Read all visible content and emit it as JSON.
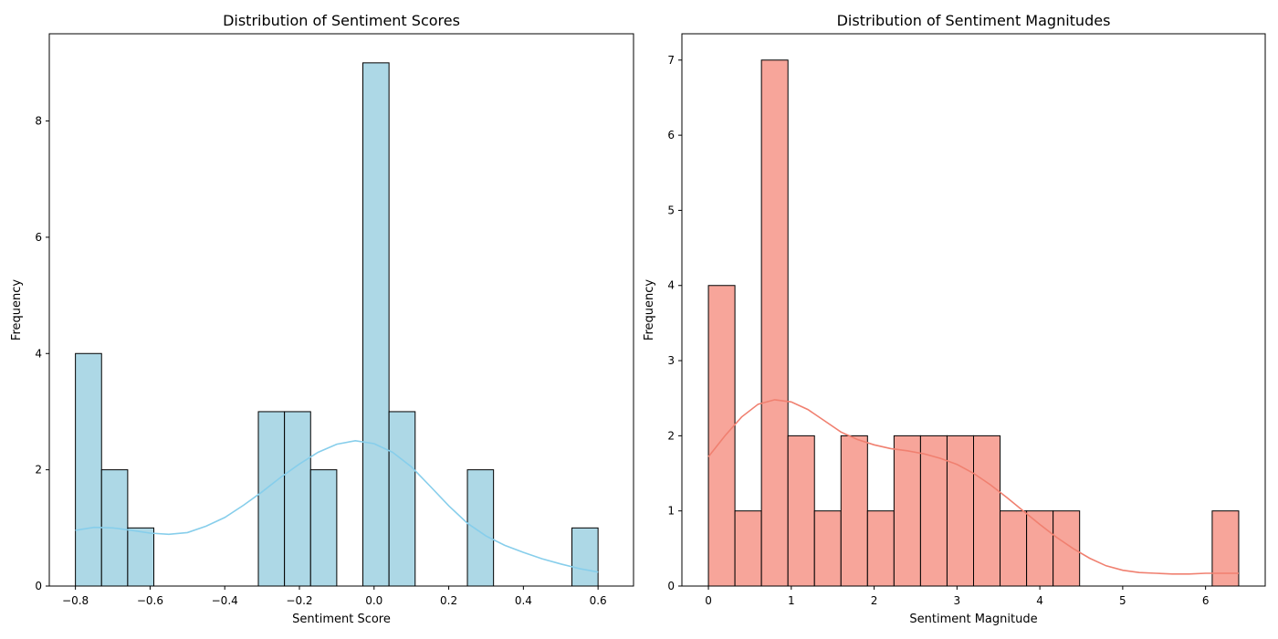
{
  "chart_data": [
    {
      "type": "bar",
      "title": "Distribution of Sentiment Scores",
      "xlabel": "Sentiment Score",
      "ylabel": "Frequency",
      "bar_color": "#add8e6",
      "bar_edge_color": "#000000",
      "kde_color": "#87ceeb",
      "xlim": [
        -0.87,
        0.695
      ],
      "ylim": [
        0,
        9.5
      ],
      "x_ticks": [
        -0.8,
        -0.6,
        -0.4,
        -0.2,
        0.0,
        0.2,
        0.4,
        0.6
      ],
      "x_tick_labels": [
        "−0.8",
        "−0.6",
        "−0.4",
        "−0.2",
        "0.0",
        "0.2",
        "0.4",
        "0.6"
      ],
      "y_ticks": [
        0,
        2,
        4,
        6,
        8
      ],
      "y_tick_labels": [
        "0",
        "2",
        "4",
        "6",
        "8"
      ],
      "bins": [
        {
          "start": -0.8,
          "end": -0.73,
          "count": 4
        },
        {
          "start": -0.73,
          "end": -0.66,
          "count": 2
        },
        {
          "start": -0.66,
          "end": -0.59,
          "count": 1
        },
        {
          "start": -0.59,
          "end": -0.52,
          "count": 0
        },
        {
          "start": -0.52,
          "end": -0.45,
          "count": 0
        },
        {
          "start": -0.45,
          "end": -0.38,
          "count": 0
        },
        {
          "start": -0.38,
          "end": -0.31,
          "count": 0
        },
        {
          "start": -0.31,
          "end": -0.24,
          "count": 3
        },
        {
          "start": -0.24,
          "end": -0.17,
          "count": 3
        },
        {
          "start": -0.17,
          "end": -0.1,
          "count": 2
        },
        {
          "start": -0.1,
          "end": -0.03,
          "count": 0
        },
        {
          "start": -0.03,
          "end": 0.04,
          "count": 9
        },
        {
          "start": 0.04,
          "end": 0.11,
          "count": 3
        },
        {
          "start": 0.11,
          "end": 0.18,
          "count": 0
        },
        {
          "start": 0.18,
          "end": 0.25,
          "count": 0
        },
        {
          "start": 0.25,
          "end": 0.32,
          "count": 2
        },
        {
          "start": 0.32,
          "end": 0.39,
          "count": 0
        },
        {
          "start": 0.39,
          "end": 0.46,
          "count": 0
        },
        {
          "start": 0.46,
          "end": 0.53,
          "count": 0
        },
        {
          "start": 0.53,
          "end": 0.6,
          "count": 1
        }
      ],
      "kde": {
        "x": [
          -0.8,
          -0.75,
          -0.7,
          -0.65,
          -0.6,
          -0.55,
          -0.5,
          -0.45,
          -0.4,
          -0.35,
          -0.3,
          -0.25,
          -0.2,
          -0.15,
          -0.1,
          -0.05,
          0.0,
          0.05,
          0.1,
          0.15,
          0.2,
          0.25,
          0.3,
          0.35,
          0.4,
          0.45,
          0.5,
          0.55,
          0.6
        ],
        "y": [
          0.96,
          1.01,
          1.0,
          0.96,
          0.91,
          0.89,
          0.92,
          1.03,
          1.18,
          1.39,
          1.62,
          1.87,
          2.1,
          2.3,
          2.44,
          2.5,
          2.45,
          2.3,
          2.05,
          1.72,
          1.38,
          1.08,
          0.86,
          0.7,
          0.58,
          0.47,
          0.38,
          0.3,
          0.24
        ]
      }
    },
    {
      "type": "bar",
      "title": "Distribution of Sentiment Magnitudes",
      "xlabel": "Sentiment Magnitude",
      "ylabel": "Frequency",
      "bar_color": "#f7a59a",
      "bar_edge_color": "#000000",
      "kde_color": "#f08070",
      "xlim": [
        -0.32,
        6.72
      ],
      "ylim": [
        0,
        7.35
      ],
      "x_ticks": [
        0,
        1,
        2,
        3,
        4,
        5,
        6
      ],
      "x_tick_labels": [
        "0",
        "1",
        "2",
        "3",
        "4",
        "5",
        "6"
      ],
      "y_ticks": [
        0,
        1,
        2,
        3,
        4,
        5,
        6,
        7
      ],
      "y_tick_labels": [
        "0",
        "1",
        "2",
        "3",
        "4",
        "5",
        "6",
        "7"
      ],
      "bins": [
        {
          "start": 0.0,
          "end": 0.32,
          "count": 4
        },
        {
          "start": 0.32,
          "end": 0.64,
          "count": 1
        },
        {
          "start": 0.64,
          "end": 0.96,
          "count": 7
        },
        {
          "start": 0.96,
          "end": 1.28,
          "count": 2
        },
        {
          "start": 1.28,
          "end": 1.6,
          "count": 1
        },
        {
          "start": 1.6,
          "end": 1.92,
          "count": 2
        },
        {
          "start": 1.92,
          "end": 2.24,
          "count": 1
        },
        {
          "start": 2.24,
          "end": 2.56,
          "count": 2
        },
        {
          "start": 2.56,
          "end": 2.88,
          "count": 2
        },
        {
          "start": 2.88,
          "end": 3.2,
          "count": 2
        },
        {
          "start": 3.2,
          "end": 3.52,
          "count": 2
        },
        {
          "start": 3.52,
          "end": 3.84,
          "count": 1
        },
        {
          "start": 3.84,
          "end": 4.16,
          "count": 1
        },
        {
          "start": 4.16,
          "end": 4.48,
          "count": 1
        },
        {
          "start": 4.48,
          "end": 4.8,
          "count": 0
        },
        {
          "start": 4.8,
          "end": 5.12,
          "count": 0
        },
        {
          "start": 5.12,
          "end": 5.44,
          "count": 0
        },
        {
          "start": 5.44,
          "end": 5.76,
          "count": 0
        },
        {
          "start": 5.76,
          "end": 6.08,
          "count": 0
        },
        {
          "start": 6.08,
          "end": 6.4,
          "count": 1
        }
      ],
      "kde": {
        "x": [
          0.0,
          0.2,
          0.4,
          0.6,
          0.8,
          1.0,
          1.2,
          1.4,
          1.6,
          1.8,
          2.0,
          2.2,
          2.4,
          2.6,
          2.8,
          3.0,
          3.2,
          3.4,
          3.6,
          3.8,
          4.0,
          4.2,
          4.4,
          4.6,
          4.8,
          5.0,
          5.2,
          5.4,
          5.6,
          5.8,
          6.0,
          6.2,
          6.4
        ],
        "y": [
          1.72,
          2.0,
          2.25,
          2.42,
          2.48,
          2.45,
          2.35,
          2.2,
          2.05,
          1.95,
          1.88,
          1.83,
          1.8,
          1.76,
          1.7,
          1.62,
          1.5,
          1.35,
          1.18,
          1.0,
          0.82,
          0.65,
          0.5,
          0.37,
          0.27,
          0.21,
          0.18,
          0.17,
          0.16,
          0.16,
          0.17,
          0.17,
          0.17
        ]
      }
    }
  ]
}
